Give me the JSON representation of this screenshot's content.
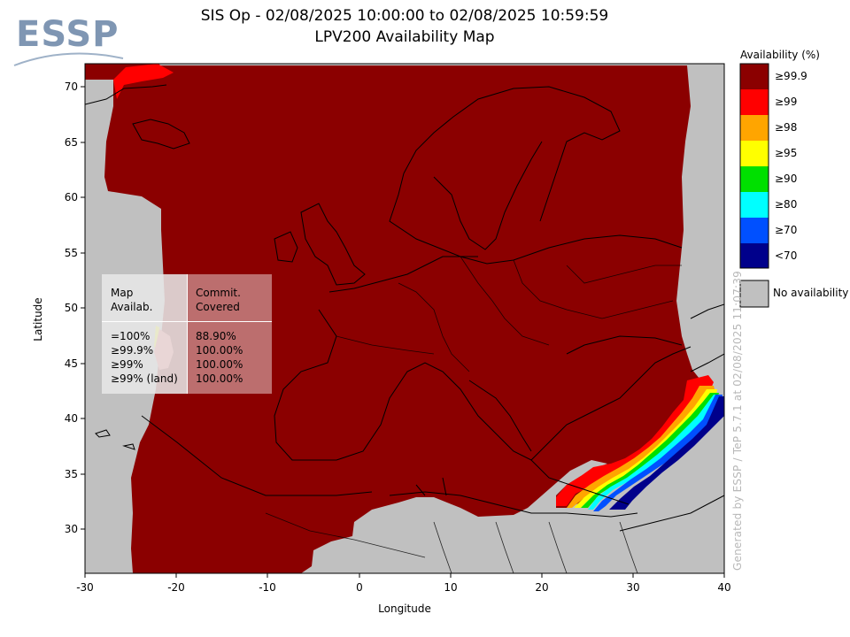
{
  "header": {
    "title_line1": "SIS Op - 02/08/2025 10:00:00 to 02/08/2025 10:59:59",
    "title_line2": "LPV200 Availability Map",
    "logo_text": "ESSP"
  },
  "axes": {
    "xlabel": "Longitude",
    "ylabel": "Latitude",
    "x_ticks": [
      "-30",
      "-20",
      "-10",
      "0",
      "10",
      "20",
      "30",
      "40"
    ],
    "y_ticks": [
      "70",
      "65",
      "60",
      "55",
      "50",
      "45",
      "40",
      "35",
      "30"
    ],
    "x_range": [
      -30,
      40
    ],
    "y_range": [
      26,
      72
    ]
  },
  "legend": {
    "title": "Availability (%)",
    "items": [
      {
        "label": "≥99.9",
        "color": "#8b0000"
      },
      {
        "label": "≥99",
        "color": "#ff0000"
      },
      {
        "label": "≥98",
        "color": "#ffa500"
      },
      {
        "label": "≥95",
        "color": "#ffff00"
      },
      {
        "label": "≥90",
        "color": "#00e000"
      },
      {
        "label": "≥80",
        "color": "#00ffff"
      },
      {
        "label": "≥70",
        "color": "#0050ff"
      },
      {
        "label": "<70",
        "color": "#00008b"
      }
    ],
    "no_availability_label": "No availability",
    "no_availability_color": "#c0c0c0"
  },
  "stats_table": {
    "header_left": "Map\nAvailab.",
    "header_right": "Commit.\nCovered",
    "rows_left": "=100%\n≥99.9%\n≥99%\n≥99% (land)",
    "rows_right": "88.90%\n100.00%\n100.00%\n100.00%"
  },
  "side_credit": "Generated by ESSP / TeP 5.7.1 at 02/08/2025 11:07:39"
}
